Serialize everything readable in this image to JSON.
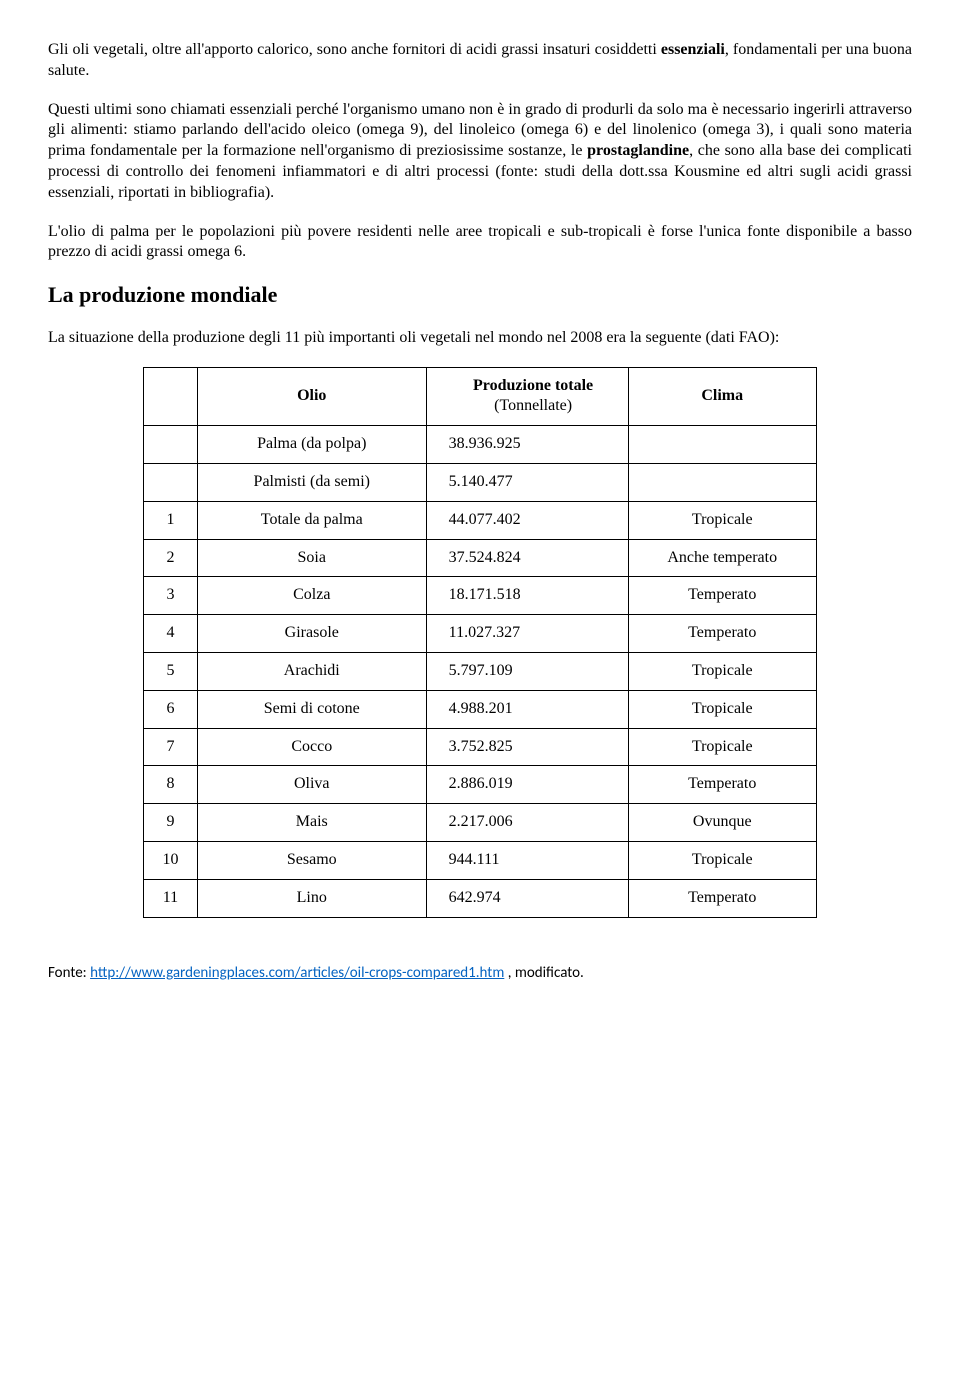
{
  "para1": "Gli oli vegetali, oltre all'apporto calorico, sono anche fornitori di acidi grassi insaturi cosiddetti ",
  "para1_bold": "essenziali",
  "para1_rest": ", fondamentali per una buona salute.",
  "para2a": "Questi ultimi sono chiamati essenziali perché l'organismo umano non è in grado di produrli da solo ma è necessario ingerirli attraverso gli alimenti: stiamo parlando dell'acido oleico (omega 9), del linoleico (omega 6) e del linolenico (omega 3), i quali sono materia prima fondamentale per la formazione nell'organismo di preziosissime sostanze, le ",
  "para2_bold": "prostaglandine",
  "para2b": ", che sono alla base dei complicati processi di controllo dei fenomeni infiammatori e di altri processi (fonte: studi della dott.ssa Kousmine ed altri sugli acidi grassi essenziali, riportati in bibliografia).",
  "para3": "L'olio di palma per le popolazioni più povere residenti nelle aree tropicali e sub-tropicali è forse l'unica fonte disponibile a basso prezzo di acidi grassi omega 6.",
  "heading": "La produzione mondiale",
  "intro": "La situazione della produzione degli 11 più importanti oli vegetali nel mondo nel 2008 era la seguente (dati FAO):",
  "table": {
    "headers": {
      "oil": "Olio",
      "prod": "Produzione totale",
      "prod_sub": "(Tonnellate)",
      "clima": "Clima"
    },
    "rows": [
      {
        "rank": "",
        "oil": "Palma (da polpa)",
        "prod": "38.936.925",
        "clima": ""
      },
      {
        "rank": "",
        "oil": "Palmisti (da semi)",
        "prod": "5.140.477",
        "clima": ""
      },
      {
        "rank": "1",
        "oil": "Totale da palma",
        "prod": "44.077.402",
        "clima": "Tropicale"
      },
      {
        "rank": "2",
        "oil": "Soia",
        "prod": "37.524.824",
        "clima": "Anche temperato"
      },
      {
        "rank": "3",
        "oil": "Colza",
        "prod": "18.171.518",
        "clima": "Temperato"
      },
      {
        "rank": "4",
        "oil": "Girasole",
        "prod": "11.027.327",
        "clima": "Temperato"
      },
      {
        "rank": "5",
        "oil": "Arachidi",
        "prod": "5.797.109",
        "clima": "Tropicale"
      },
      {
        "rank": "6",
        "oil": "Semi di cotone",
        "prod": "4.988.201",
        "clima": "Tropicale"
      },
      {
        "rank": "7",
        "oil": "Cocco",
        "prod": "3.752.825",
        "clima": "Tropicale"
      },
      {
        "rank": "8",
        "oil": "Oliva",
        "prod": "2.886.019",
        "clima": "Temperato"
      },
      {
        "rank": "9",
        "oil": "Mais",
        "prod": "2.217.006",
        "clima": "Ovunque"
      },
      {
        "rank": "10",
        "oil": "Sesamo",
        "prod": "944.111",
        "clima": "Tropicale"
      },
      {
        "rank": "11",
        "oil": "Lino",
        "prod": "642.974",
        "clima": "Temperato"
      }
    ]
  },
  "source_label": "Fonte: ",
  "source_url_text": "http://www.gardeningplaces.com/articles/oil-crops-compared1.htm",
  "source_suffix": " , modificato."
}
